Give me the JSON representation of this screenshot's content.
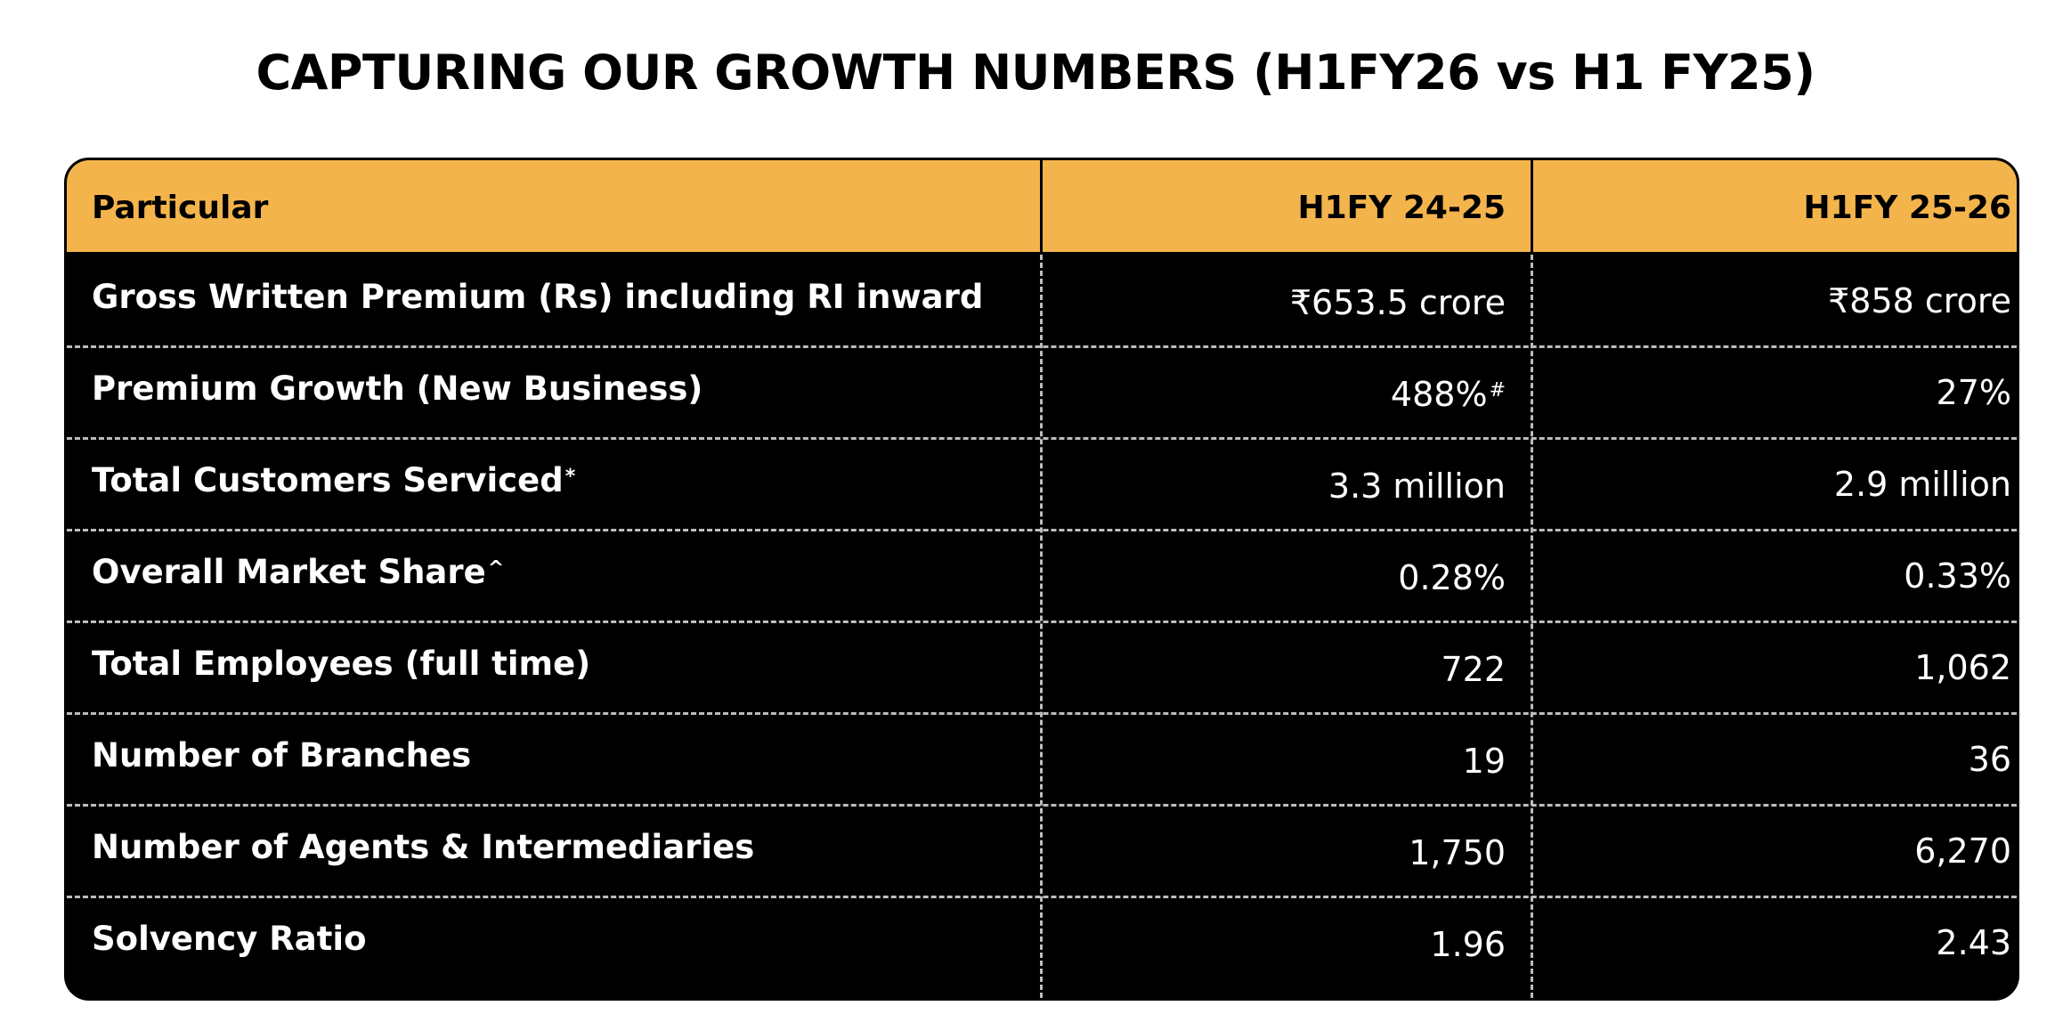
{
  "page": {
    "title": "CAPTURING OUR GROWTH NUMBERS (H1FY26 vs H1 FY25)"
  },
  "table": {
    "headers": {
      "particular": "Particular",
      "h1fy2425": "H1FY 24-25",
      "h1fy2526": "H1FY 25-26"
    },
    "rows": [
      {
        "particular": "Gross Written Premium (Rs) including RI inward",
        "particular_mark": "",
        "h1fy2425": "₹653.5 crore",
        "h1fy2425_mark": "",
        "h1fy2526": "₹858 crore"
      },
      {
        "particular": "Premium Growth (New Business)",
        "particular_mark": "",
        "h1fy2425": "488%",
        "h1fy2425_mark": "#",
        "h1fy2526": "27%"
      },
      {
        "particular": "Total Customers Serviced",
        "particular_mark": "*",
        "h1fy2425": "3.3 million",
        "h1fy2425_mark": "",
        "h1fy2526": "2.9 million"
      },
      {
        "particular": "Overall Market Share",
        "particular_mark": "^",
        "h1fy2425": "0.28%",
        "h1fy2425_mark": "",
        "h1fy2526": "0.33%"
      },
      {
        "particular": "Total Employees (full time)",
        "particular_mark": "",
        "h1fy2425": "722",
        "h1fy2425_mark": "",
        "h1fy2526": "1,062"
      },
      {
        "particular": "Number of Branches",
        "particular_mark": "",
        "h1fy2425": "19",
        "h1fy2425_mark": "",
        "h1fy2526": "36"
      },
      {
        "particular": "Number of Agents & Intermediaries",
        "particular_mark": "",
        "h1fy2425": "1,750",
        "h1fy2425_mark": "",
        "h1fy2526": "6,270"
      },
      {
        "particular": "Solvency Ratio",
        "particular_mark": "",
        "h1fy2425": "1.96",
        "h1fy2425_mark": "",
        "h1fy2526": "2.43"
      }
    ]
  },
  "colors": {
    "header_bg": "#f4b44c",
    "table_bg": "#000000",
    "body_text": "#ffffff",
    "divider": "#bdbdbd"
  }
}
